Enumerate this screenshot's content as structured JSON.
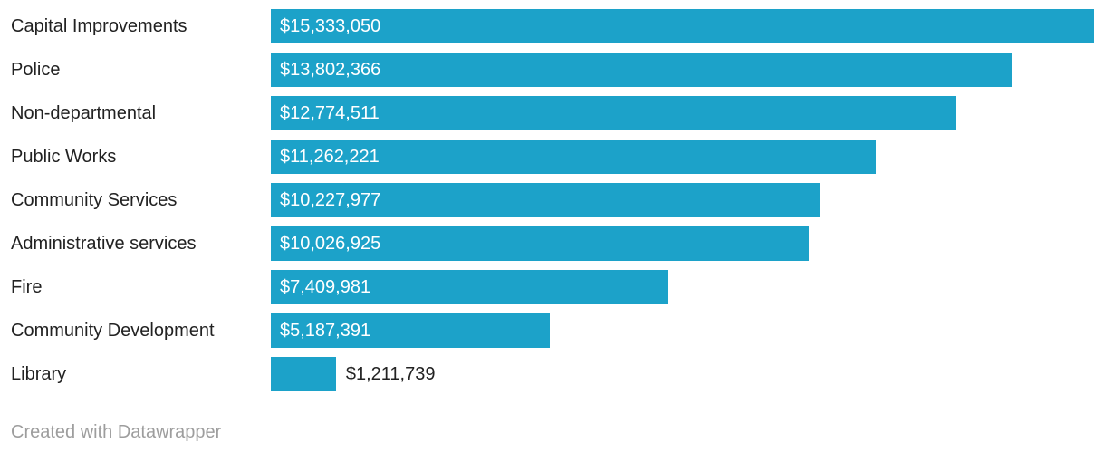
{
  "chart_data": {
    "type": "bar",
    "orientation": "horizontal",
    "title": "",
    "xlabel": "",
    "ylabel": "",
    "xlim": [
      0,
      15333050
    ],
    "grid": false,
    "legend": "none",
    "bar_color": "#1ca2c9",
    "categories": [
      "Capital Improvements",
      "Police",
      "Non-departmental",
      "Public Works",
      "Community Services",
      "Administrative services",
      "Fire",
      "Community Development",
      "Library"
    ],
    "values": [
      15333050,
      13802366,
      12774511,
      11262221,
      10227977,
      10026925,
      7409981,
      5187391,
      1211739
    ],
    "value_labels": [
      "$15,333,050",
      "$13,802,366",
      "$12,774,511",
      "$11,262,221",
      "$10,227,977",
      "$10,026,925",
      "$7,409,981",
      "$5,187,391",
      "$1,211,739"
    ]
  },
  "footer": {
    "credit": "Created with Datawrapper"
  }
}
